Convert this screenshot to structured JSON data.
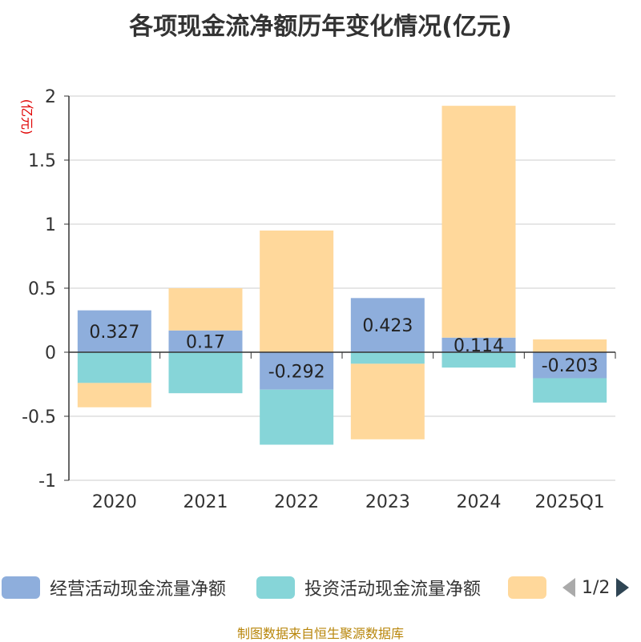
{
  "title": "各项现金流净额历年变化情况(亿元)",
  "source_note": "制图数据来自恒生聚源数据库",
  "legend": {
    "items": [
      {
        "label": "经营活动现金流量净额",
        "color": "#8eaedc"
      },
      {
        "label": "投资活动现金流量净额",
        "color": "#86d5d8"
      },
      {
        "label": "",
        "color": "#ffd89b"
      }
    ],
    "pager": "1/2"
  },
  "chart_data": {
    "type": "bar",
    "stacked": true,
    "title": "各项现金流净额历年变化情况(亿元)",
    "ylabel": "(亿元)",
    "xlabel": "",
    "ylim": [
      -1,
      2
    ],
    "yticks": [
      -1,
      -0.5,
      0,
      0.5,
      1,
      1.5,
      2
    ],
    "ytick_labels": [
      "-1",
      "-0.5",
      "0",
      "0.5",
      "1",
      "1.5",
      "2"
    ],
    "grid": true,
    "categories": [
      "2020",
      "2021",
      "2022",
      "2023",
      "2024",
      "2025Q1"
    ],
    "series": [
      {
        "name": "经营活动现金流量净额",
        "color": "#8eaedc",
        "values": [
          0.327,
          0.17,
          -0.292,
          0.423,
          0.114,
          -0.203
        ],
        "labels": [
          "0.327",
          "0.17",
          "-0.292",
          "0.423",
          "0.114",
          "-0.203"
        ]
      },
      {
        "name": "投资活动现金流量净额",
        "color": "#86d5d8",
        "values": [
          -0.24,
          -0.32,
          -0.43,
          -0.09,
          -0.12,
          -0.19
        ]
      },
      {
        "name": "",
        "color": "#ffd89b",
        "values": [
          -0.19,
          0.33,
          0.95,
          -0.59,
          1.81,
          0.1
        ]
      }
    ]
  }
}
